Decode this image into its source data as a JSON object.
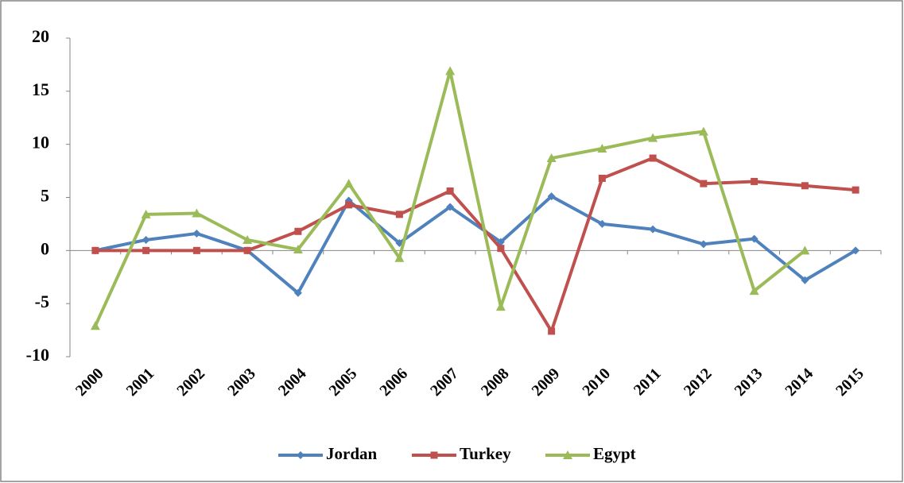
{
  "chart_data": {
    "type": "line",
    "categories": [
      "2000",
      "2001",
      "2002",
      "2003",
      "2004",
      "2005",
      "2006",
      "2007",
      "2008",
      "2009",
      "2010",
      "2011",
      "2012",
      "2013",
      "2014",
      "2015"
    ],
    "series": [
      {
        "name": "Jordan",
        "color": "#4f81bd",
        "values": [
          0,
          1.0,
          1.6,
          0,
          -4.0,
          4.7,
          0.7,
          4.1,
          0.8,
          5.1,
          2.5,
          2.0,
          0.6,
          1.1,
          -2.8,
          0
        ]
      },
      {
        "name": "Turkey",
        "color": "#c0504d",
        "values": [
          0,
          0,
          0,
          0,
          1.8,
          4.3,
          3.4,
          5.6,
          0.2,
          -7.6,
          6.8,
          8.7,
          6.3,
          6.5,
          6.1,
          5.7
        ]
      },
      {
        "name": "Egypt",
        "color": "#9bbb59",
        "values": [
          -7.1,
          3.4,
          3.5,
          1.0,
          0.1,
          6.3,
          -0.7,
          16.9,
          -5.3,
          8.7,
          9.6,
          10.6,
          11.2,
          -3.8,
          0,
          null
        ]
      }
    ],
    "ylim": [
      -10,
      20
    ],
    "yticks": [
      -10,
      -5,
      0,
      5,
      10,
      15,
      20
    ],
    "legend": "bottom"
  }
}
